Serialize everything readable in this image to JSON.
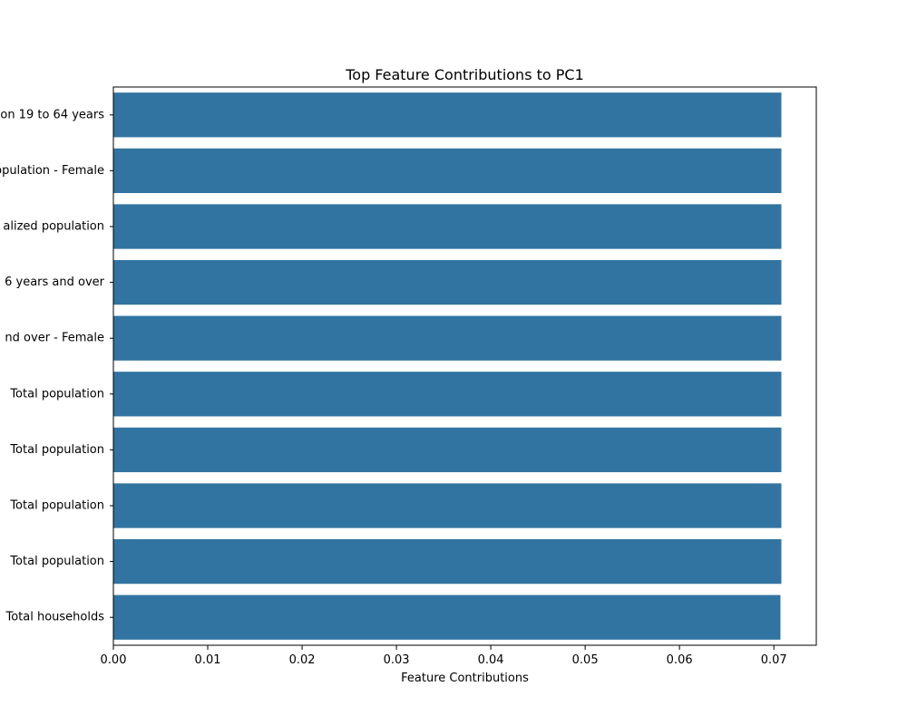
{
  "chart_data": {
    "type": "bar",
    "orientation": "horizontal",
    "title": "Top Feature Contributions to PC1",
    "xlabel": "Feature Contributions",
    "ylabel": "",
    "xlim": [
      0,
      0.0745
    ],
    "xticks": [
      0.0,
      0.01,
      0.02,
      0.03,
      0.04,
      0.05,
      0.06,
      0.07
    ],
    "xtick_labels": [
      "0.00",
      "0.01",
      "0.02",
      "0.03",
      "0.04",
      "0.05",
      "0.06",
      "0.07"
    ],
    "grid": false,
    "categories": [
      "on 19 to 64 years",
      "opulation - Female",
      "alized population",
      "6 years and over",
      "nd over - Female",
      "Total population",
      "Total population",
      "Total population",
      "Total population",
      "Total households"
    ],
    "values": [
      0.0708,
      0.0708,
      0.0708,
      0.0708,
      0.0708,
      0.0708,
      0.0708,
      0.0708,
      0.0708,
      0.0707
    ],
    "bar_color": "#3274a1"
  }
}
